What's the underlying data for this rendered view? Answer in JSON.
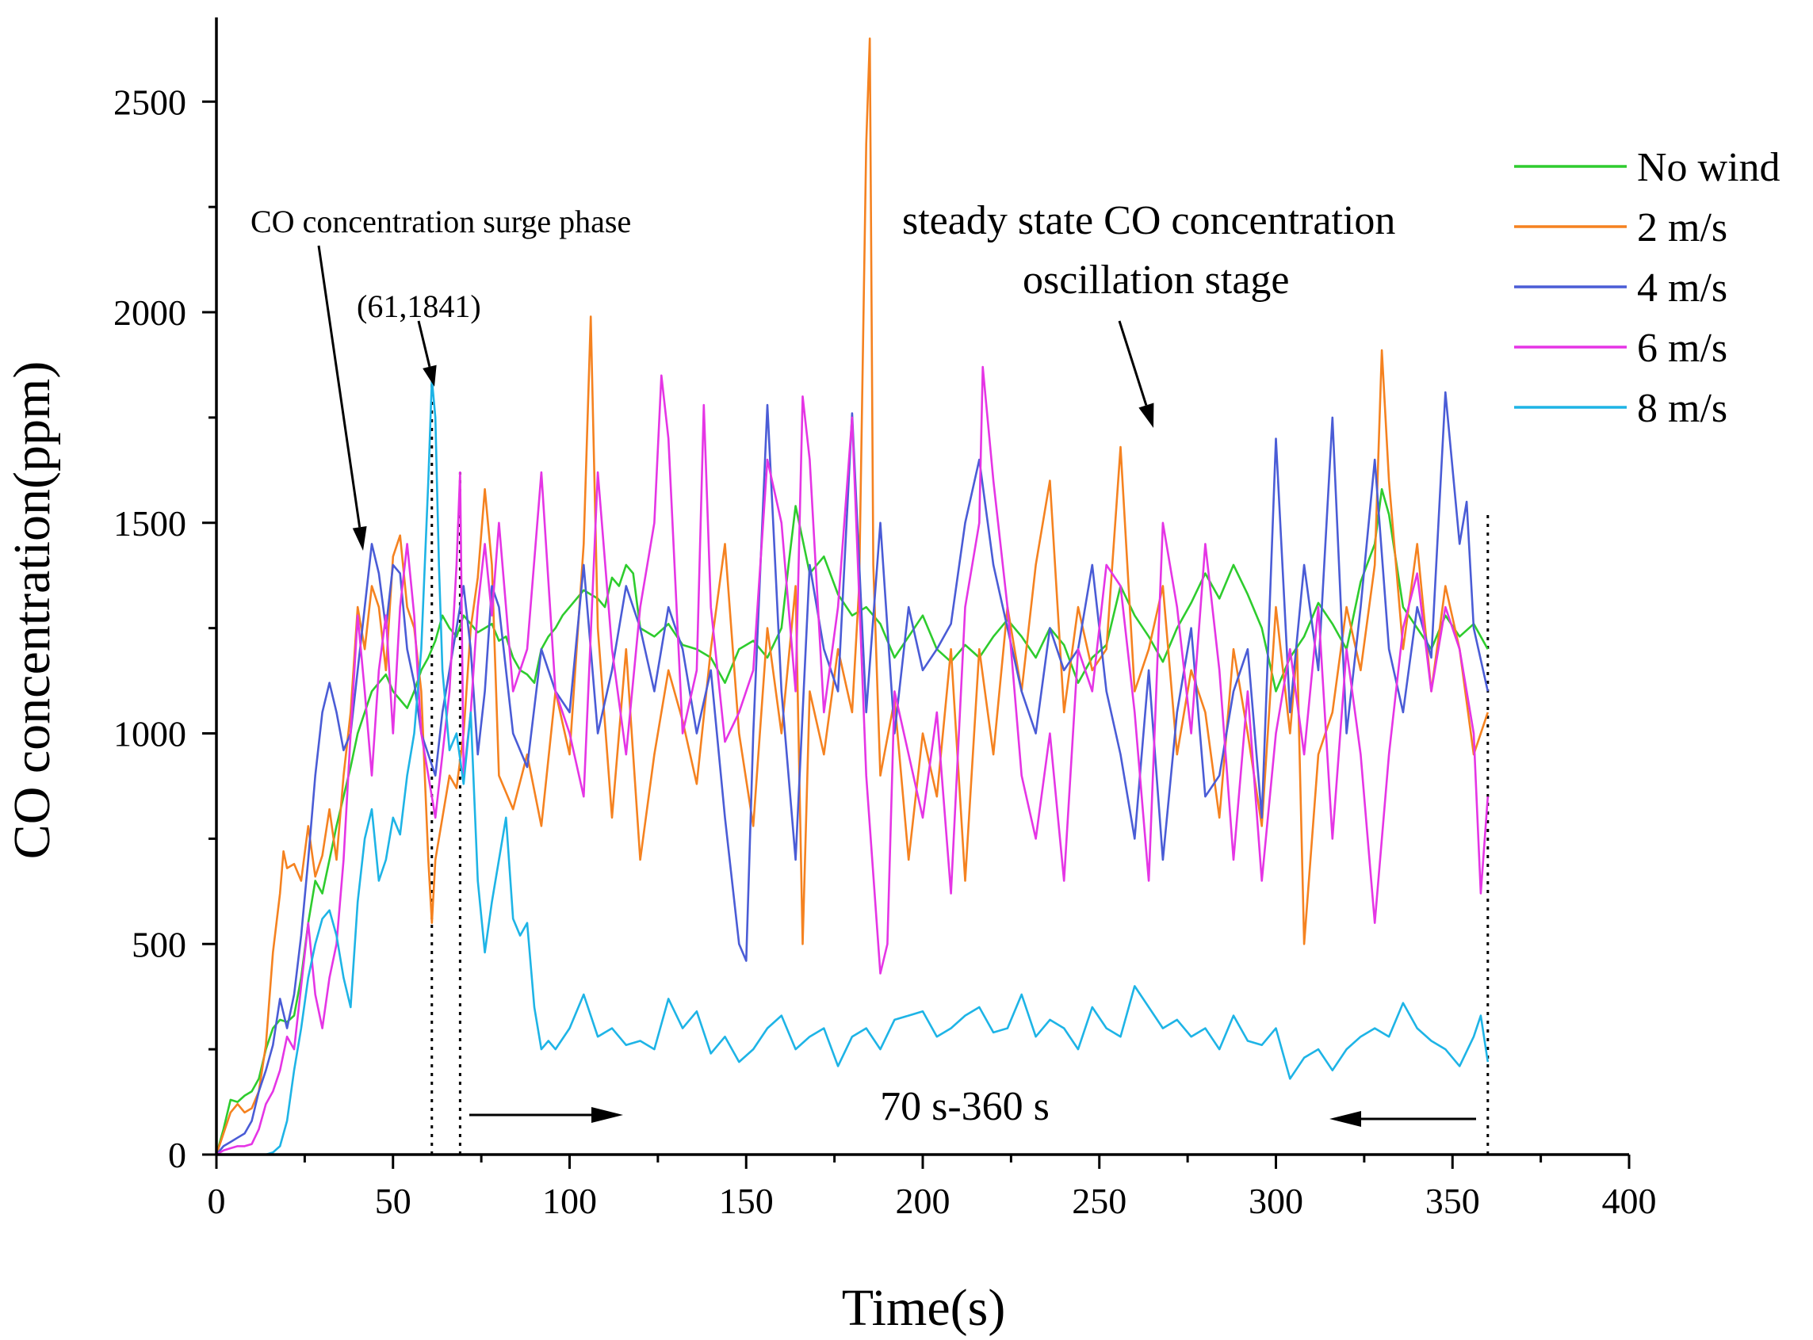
{
  "chart_data": {
    "type": "line",
    "xlabel": "Time(s)",
    "ylabel": "CO concentration(ppm)",
    "xlim": [
      0,
      400
    ],
    "ylim": [
      0,
      2700
    ],
    "xticks": [
      0,
      50,
      100,
      150,
      200,
      250,
      300,
      350,
      400
    ],
    "yticks": [
      0,
      500,
      1000,
      1500,
      2000,
      2500
    ],
    "grid": false,
    "legend_position": "top-right",
    "series": [
      {
        "name": "No wind",
        "color": "#2ecc2e",
        "x": [
          0,
          2,
          4,
          6,
          8,
          10,
          12,
          14,
          16,
          18,
          20,
          22,
          24,
          26,
          28,
          30,
          32,
          34,
          36,
          38,
          40,
          42,
          44,
          46,
          48,
          50,
          52,
          54,
          56,
          58,
          60,
          62,
          64,
          66,
          68,
          70,
          72,
          74,
          76,
          78,
          80,
          82,
          84,
          86,
          88,
          90,
          92,
          94,
          96,
          98,
          100,
          102,
          104,
          106,
          108,
          110,
          112,
          114,
          116,
          118,
          120,
          124,
          128,
          132,
          136,
          140,
          144,
          148,
          152,
          156,
          160,
          162,
          164,
          166,
          168,
          172,
          176,
          180,
          184,
          188,
          192,
          196,
          200,
          204,
          208,
          212,
          216,
          220,
          224,
          228,
          232,
          236,
          240,
          244,
          248,
          252,
          256,
          260,
          264,
          268,
          272,
          276,
          280,
          284,
          288,
          292,
          296,
          300,
          304,
          308,
          312,
          316,
          320,
          324,
          328,
          330,
          332,
          336,
          340,
          344,
          348,
          352,
          356,
          360
        ],
        "values": [
          0,
          60,
          130,
          125,
          140,
          150,
          180,
          250,
          300,
          320,
          315,
          330,
          420,
          550,
          650,
          620,
          700,
          780,
          850,
          920,
          1000,
          1050,
          1100,
          1120,
          1140,
          1100,
          1080,
          1060,
          1100,
          1150,
          1180,
          1220,
          1280,
          1250,
          1230,
          1280,
          1260,
          1240,
          1250,
          1260,
          1220,
          1230,
          1180,
          1150,
          1140,
          1120,
          1200,
          1230,
          1250,
          1280,
          1300,
          1320,
          1340,
          1330,
          1320,
          1300,
          1370,
          1350,
          1400,
          1380,
          1250,
          1230,
          1260,
          1210,
          1200,
          1180,
          1120,
          1200,
          1220,
          1180,
          1250,
          1400,
          1540,
          1460,
          1380,
          1420,
          1330,
          1280,
          1300,
          1260,
          1180,
          1230,
          1280,
          1200,
          1170,
          1210,
          1180,
          1230,
          1270,
          1230,
          1180,
          1250,
          1210,
          1120,
          1180,
          1210,
          1350,
          1280,
          1230,
          1170,
          1250,
          1310,
          1380,
          1320,
          1400,
          1330,
          1250,
          1100,
          1180,
          1230,
          1310,
          1260,
          1200,
          1360,
          1450,
          1580,
          1520,
          1300,
          1250,
          1200,
          1280,
          1230,
          1260,
          1200
        ]
      },
      {
        "name": "2 m/s",
        "color": "#f58220",
        "x": [
          0,
          2,
          4,
          6,
          8,
          10,
          12,
          14,
          16,
          18,
          19,
          20,
          22,
          24,
          26,
          28,
          30,
          32,
          34,
          36,
          38,
          40,
          42,
          44,
          46,
          48,
          50,
          52,
          54,
          56,
          58,
          60,
          61,
          62,
          64,
          66,
          68,
          70,
          72,
          74,
          76,
          78,
          80,
          84,
          88,
          92,
          96,
          100,
          104,
          106,
          108,
          112,
          116,
          120,
          124,
          128,
          132,
          136,
          140,
          144,
          148,
          152,
          156,
          160,
          164,
          166,
          168,
          172,
          176,
          180,
          182,
          184,
          185,
          186,
          188,
          192,
          196,
          200,
          204,
          208,
          212,
          216,
          220,
          224,
          228,
          232,
          236,
          240,
          244,
          248,
          252,
          256,
          260,
          264,
          268,
          272,
          276,
          280,
          284,
          288,
          292,
          296,
          300,
          304,
          306,
          308,
          312,
          316,
          320,
          324,
          328,
          330,
          332,
          336,
          340,
          344,
          348,
          352,
          356,
          360
        ],
        "values": [
          0,
          50,
          100,
          120,
          100,
          110,
          150,
          260,
          480,
          620,
          720,
          680,
          690,
          650,
          780,
          660,
          710,
          820,
          700,
          900,
          1050,
          1300,
          1200,
          1350,
          1300,
          1150,
          1420,
          1470,
          1300,
          1250,
          1100,
          700,
          550,
          700,
          800,
          900,
          870,
          1000,
          1250,
          1370,
          1580,
          1400,
          900,
          820,
          950,
          780,
          1100,
          950,
          1450,
          1990,
          1250,
          800,
          1200,
          700,
          950,
          1150,
          1030,
          880,
          1200,
          1450,
          1000,
          780,
          1250,
          1000,
          1350,
          500,
          1100,
          950,
          1200,
          1050,
          1350,
          2400,
          2650,
          1400,
          900,
          1080,
          700,
          1000,
          850,
          1200,
          650,
          1200,
          950,
          1300,
          1100,
          1400,
          1600,
          1050,
          1300,
          1150,
          1200,
          1680,
          1100,
          1200,
          1350,
          950,
          1150,
          1050,
          800,
          1200,
          1000,
          780,
          1300,
          1000,
          1200,
          500,
          950,
          1050,
          1300,
          1150,
          1400,
          1910,
          1600,
          1200,
          1450,
          1100,
          1350,
          1200,
          950,
          1050
        ]
      },
      {
        "name": "4 m/s",
        "color": "#4a5cd6",
        "x": [
          0,
          2,
          4,
          6,
          8,
          10,
          12,
          14,
          16,
          18,
          20,
          22,
          24,
          26,
          28,
          30,
          32,
          34,
          36,
          38,
          40,
          42,
          44,
          46,
          48,
          50,
          52,
          54,
          56,
          58,
          60,
          62,
          64,
          66,
          68,
          70,
          72,
          74,
          76,
          78,
          80,
          84,
          88,
          92,
          96,
          100,
          104,
          108,
          112,
          116,
          120,
          124,
          128,
          132,
          136,
          140,
          144,
          148,
          150,
          152,
          156,
          160,
          164,
          168,
          172,
          176,
          180,
          184,
          188,
          192,
          196,
          200,
          204,
          208,
          212,
          216,
          220,
          224,
          228,
          232,
          236,
          240,
          244,
          248,
          252,
          256,
          260,
          264,
          268,
          272,
          276,
          280,
          284,
          288,
          292,
          296,
          300,
          304,
          308,
          312,
          316,
          320,
          324,
          328,
          332,
          336,
          340,
          344,
          348,
          352,
          354,
          356,
          360
        ],
        "values": [
          0,
          20,
          30,
          40,
          50,
          80,
          150,
          200,
          260,
          370,
          300,
          380,
          520,
          700,
          900,
          1050,
          1120,
          1050,
          960,
          1000,
          1150,
          1300,
          1450,
          1380,
          1250,
          1400,
          1380,
          1200,
          1120,
          1000,
          950,
          900,
          1050,
          1150,
          1250,
          1350,
          1200,
          950,
          1100,
          1350,
          1300,
          1000,
          920,
          1200,
          1100,
          1050,
          1400,
          1000,
          1150,
          1350,
          1250,
          1100,
          1300,
          1200,
          1000,
          1150,
          800,
          500,
          460,
          1000,
          1780,
          1100,
          700,
          1400,
          1200,
          1100,
          1760,
          1050,
          1500,
          1000,
          1300,
          1150,
          1200,
          1260,
          1500,
          1650,
          1400,
          1250,
          1100,
          1000,
          1250,
          1150,
          1200,
          1400,
          1100,
          950,
          750,
          1150,
          700,
          1050,
          1250,
          850,
          900,
          1100,
          1200,
          800,
          1700,
          1050,
          1400,
          1150,
          1750,
          1000,
          1300,
          1650,
          1200,
          1050,
          1300,
          1180,
          1810,
          1450,
          1550,
          1250,
          1100
        ]
      },
      {
        "name": "6 m/s",
        "color": "#e535e5",
        "x": [
          0,
          2,
          4,
          6,
          8,
          10,
          12,
          14,
          16,
          18,
          20,
          22,
          24,
          26,
          28,
          30,
          32,
          34,
          36,
          38,
          40,
          42,
          44,
          46,
          48,
          50,
          52,
          54,
          56,
          58,
          60,
          62,
          64,
          66,
          68,
          69,
          70,
          72,
          74,
          76,
          78,
          80,
          84,
          88,
          92,
          96,
          100,
          104,
          108,
          112,
          116,
          120,
          124,
          126,
          128,
          132,
          136,
          138,
          140,
          144,
          148,
          152,
          156,
          160,
          164,
          166,
          168,
          172,
          176,
          180,
          184,
          188,
          190,
          192,
          196,
          200,
          204,
          208,
          212,
          216,
          217,
          220,
          224,
          228,
          232,
          236,
          240,
          244,
          248,
          252,
          256,
          260,
          264,
          268,
          272,
          276,
          280,
          284,
          288,
          292,
          296,
          300,
          304,
          308,
          312,
          316,
          320,
          324,
          328,
          332,
          336,
          340,
          344,
          348,
          352,
          356,
          358,
          360
        ],
        "values": [
          0,
          10,
          15,
          20,
          20,
          25,
          60,
          120,
          150,
          200,
          280,
          250,
          400,
          550,
          380,
          300,
          420,
          500,
          700,
          1000,
          1280,
          1100,
          900,
          1150,
          1280,
          1000,
          1300,
          1450,
          1280,
          1000,
          900,
          800,
          950,
          1100,
          1400,
          1620,
          900,
          1050,
          1300,
          1450,
          1280,
          1500,
          1100,
          1200,
          1620,
          1100,
          1000,
          850,
          1620,
          1200,
          950,
          1300,
          1500,
          1850,
          1700,
          1000,
          1150,
          1780,
          1300,
          980,
          1050,
          1150,
          1650,
          1500,
          1100,
          1800,
          1650,
          1050,
          1300,
          1750,
          900,
          430,
          500,
          1100,
          950,
          800,
          1050,
          620,
          1300,
          1500,
          1870,
          1600,
          1300,
          900,
          750,
          1000,
          650,
          1200,
          1100,
          1400,
          1350,
          1050,
          650,
          1500,
          1300,
          1000,
          1450,
          1150,
          700,
          1100,
          650,
          1000,
          1200,
          950,
          1300,
          750,
          1200,
          950,
          550,
          950,
          1250,
          1380,
          1100,
          1300,
          1200,
          1000,
          620,
          850
        ]
      },
      {
        "name": "8 m/s",
        "color": "#1eb4e6",
        "x": [
          0,
          2,
          4,
          6,
          8,
          10,
          12,
          14,
          16,
          18,
          20,
          22,
          24,
          26,
          28,
          30,
          32,
          34,
          36,
          38,
          40,
          42,
          44,
          46,
          48,
          50,
          52,
          54,
          56,
          58,
          60,
          61,
          62,
          63,
          64,
          66,
          68,
          70,
          72,
          74,
          76,
          78,
          80,
          82,
          84,
          86,
          88,
          90,
          92,
          94,
          96,
          100,
          104,
          108,
          112,
          116,
          120,
          124,
          128,
          132,
          136,
          140,
          144,
          148,
          152,
          156,
          160,
          164,
          168,
          172,
          176,
          180,
          184,
          188,
          192,
          196,
          200,
          204,
          208,
          212,
          216,
          220,
          224,
          228,
          232,
          236,
          240,
          244,
          248,
          252,
          256,
          260,
          264,
          268,
          272,
          276,
          280,
          284,
          288,
          292,
          296,
          300,
          304,
          308,
          312,
          316,
          320,
          324,
          328,
          332,
          336,
          340,
          344,
          348,
          352,
          356,
          358,
          360
        ],
        "values": [
          0,
          0,
          0,
          0,
          0,
          0,
          0,
          0,
          5,
          20,
          80,
          200,
          300,
          420,
          500,
          560,
          580,
          520,
          420,
          350,
          600,
          750,
          820,
          650,
          700,
          800,
          760,
          900,
          1000,
          1200,
          1600,
          1841,
          1750,
          1400,
          1150,
          960,
          1000,
          880,
          1050,
          650,
          480,
          600,
          700,
          800,
          560,
          520,
          550,
          350,
          250,
          270,
          250,
          300,
          380,
          280,
          300,
          260,
          270,
          250,
          370,
          300,
          340,
          240,
          280,
          220,
          250,
          300,
          330,
          250,
          280,
          300,
          210,
          280,
          300,
          250,
          320,
          330,
          340,
          280,
          300,
          330,
          350,
          290,
          300,
          380,
          280,
          320,
          300,
          250,
          350,
          300,
          280,
          400,
          350,
          300,
          320,
          280,
          300,
          250,
          330,
          270,
          260,
          300,
          180,
          230,
          250,
          200,
          250,
          280,
          300,
          280,
          360,
          300,
          270,
          250,
          210,
          280,
          330,
          220
        ]
      }
    ],
    "annotations": [
      {
        "text": "CO concentration surge phase"
      },
      {
        "text": "(61,1841)"
      },
      {
        "text": "steady state CO concentration"
      },
      {
        "text": "oscillation stage"
      },
      {
        "text": "70 s-360 s"
      }
    ]
  }
}
